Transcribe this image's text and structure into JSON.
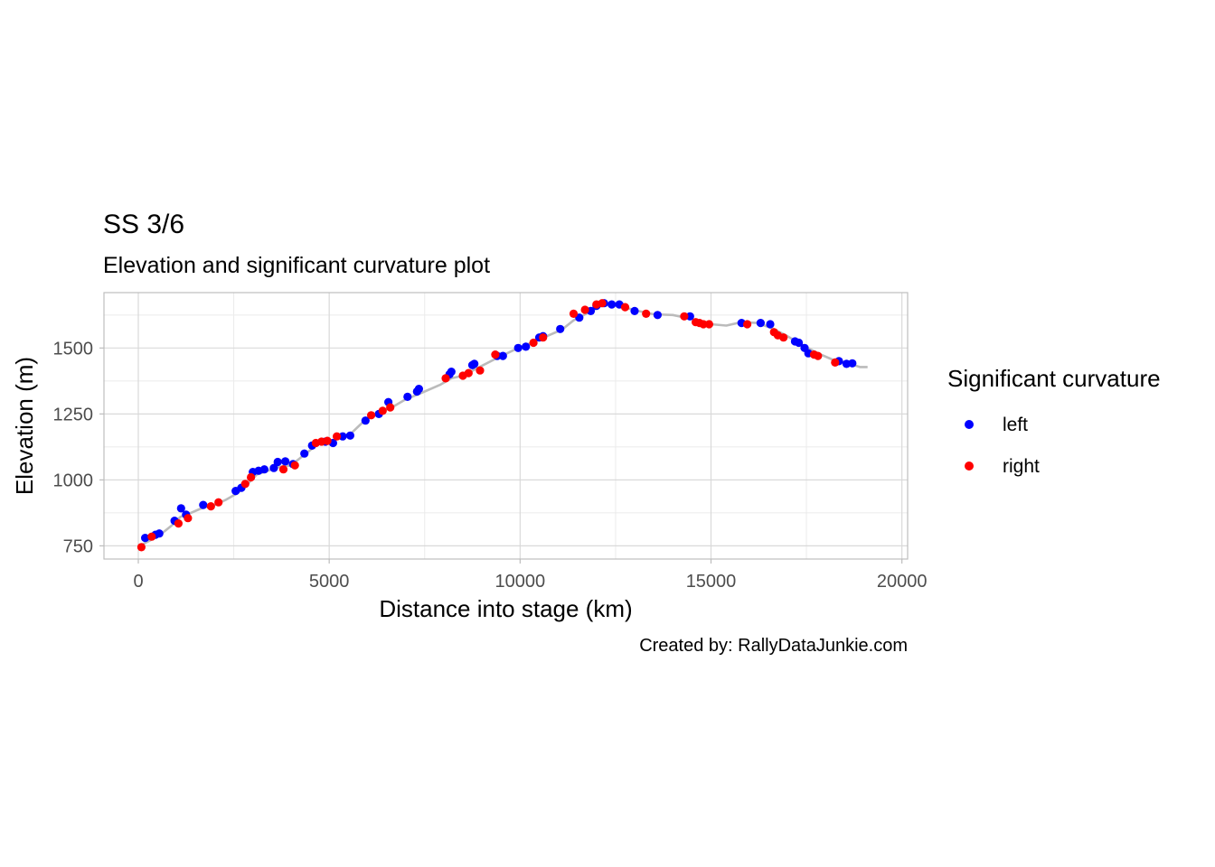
{
  "chart_data": {
    "type": "scatter",
    "title": "SS 3/6",
    "subtitle": "Elevation and significant curvature plot",
    "xlabel": "Distance into stage (km)",
    "ylabel": "Elevation (m)",
    "caption": "Created by: RallyDataJunkie.com",
    "xlim": [
      -900,
      20150
    ],
    "ylim": [
      700,
      1710
    ],
    "x_ticks": [
      0,
      5000,
      10000,
      15000,
      20000
    ],
    "x_tick_labels": [
      "0",
      "5000",
      "10000",
      "15000",
      "20000"
    ],
    "y_ticks": [
      750,
      1000,
      1250,
      1500
    ],
    "y_tick_labels": [
      "750",
      "1000",
      "1250",
      "1500"
    ],
    "grid": true,
    "legend": {
      "title": "Significant curvature",
      "position": "right"
    },
    "line": {
      "color": "#bbbbbb",
      "points": [
        [
          0,
          748
        ],
        [
          300,
          770
        ],
        [
          600,
          795
        ],
        [
          900,
          830
        ],
        [
          1100,
          860
        ],
        [
          1300,
          870
        ],
        [
          1700,
          895
        ],
        [
          2000,
          905
        ],
        [
          2300,
          925
        ],
        [
          2600,
          950
        ],
        [
          2800,
          975
        ],
        [
          3100,
          1020
        ],
        [
          3400,
          1035
        ],
        [
          3700,
          1050
        ],
        [
          4000,
          1055
        ],
        [
          4300,
          1090
        ],
        [
          4700,
          1135
        ],
        [
          5200,
          1155
        ],
        [
          5600,
          1180
        ],
        [
          6000,
          1235
        ],
        [
          6300,
          1255
        ],
        [
          6700,
          1280
        ],
        [
          7000,
          1305
        ],
        [
          7500,
          1335
        ],
        [
          7900,
          1360
        ],
        [
          8200,
          1385
        ],
        [
          8500,
          1395
        ],
        [
          8900,
          1425
        ],
        [
          9300,
          1455
        ],
        [
          9800,
          1490
        ],
        [
          10300,
          1520
        ],
        [
          10700,
          1545
        ],
        [
          11100,
          1570
        ],
        [
          11400,
          1605
        ],
        [
          11800,
          1635
        ],
        [
          12100,
          1658
        ],
        [
          12400,
          1665
        ],
        [
          12700,
          1655
        ],
        [
          13100,
          1640
        ],
        [
          13500,
          1628
        ],
        [
          14000,
          1625
        ],
        [
          14500,
          1610
        ],
        [
          15000,
          1590
        ],
        [
          15400,
          1585
        ],
        [
          15800,
          1598
        ],
        [
          16200,
          1595
        ],
        [
          16600,
          1575
        ],
        [
          17000,
          1545
        ],
        [
          17400,
          1510
        ],
        [
          17800,
          1480
        ],
        [
          18200,
          1455
        ],
        [
          18600,
          1442
        ],
        [
          18900,
          1428
        ],
        [
          19100,
          1428
        ]
      ]
    },
    "series": [
      {
        "name": "left",
        "color": "#0000ff",
        "points": [
          [
            180,
            780
          ],
          [
            450,
            792
          ],
          [
            550,
            797
          ],
          [
            950,
            845
          ],
          [
            1120,
            892
          ],
          [
            1250,
            868
          ],
          [
            1700,
            905
          ],
          [
            2550,
            958
          ],
          [
            2700,
            970
          ],
          [
            3000,
            1030
          ],
          [
            3150,
            1035
          ],
          [
            3300,
            1040
          ],
          [
            3550,
            1045
          ],
          [
            3650,
            1068
          ],
          [
            3850,
            1070
          ],
          [
            4050,
            1060
          ],
          [
            4350,
            1100
          ],
          [
            4550,
            1130
          ],
          [
            4900,
            1145
          ],
          [
            5100,
            1140
          ],
          [
            5350,
            1165
          ],
          [
            5550,
            1168
          ],
          [
            5950,
            1225
          ],
          [
            6300,
            1250
          ],
          [
            6550,
            1295
          ],
          [
            7050,
            1315
          ],
          [
            7300,
            1335
          ],
          [
            7350,
            1345
          ],
          [
            8150,
            1400
          ],
          [
            8200,
            1410
          ],
          [
            8750,
            1435
          ],
          [
            8800,
            1440
          ],
          [
            9400,
            1470
          ],
          [
            9550,
            1470
          ],
          [
            9950,
            1500
          ],
          [
            10150,
            1505
          ],
          [
            10500,
            1540
          ],
          [
            10600,
            1545
          ],
          [
            11050,
            1572
          ],
          [
            11550,
            1615
          ],
          [
            11850,
            1640
          ],
          [
            12000,
            1660
          ],
          [
            12200,
            1670
          ],
          [
            12400,
            1665
          ],
          [
            12600,
            1665
          ],
          [
            13000,
            1640
          ],
          [
            13600,
            1625
          ],
          [
            14450,
            1620
          ],
          [
            15800,
            1595
          ],
          [
            16300,
            1595
          ],
          [
            16550,
            1590
          ],
          [
            17200,
            1525
          ],
          [
            17300,
            1520
          ],
          [
            17450,
            1500
          ],
          [
            17550,
            1480
          ],
          [
            18350,
            1450
          ],
          [
            18550,
            1440
          ],
          [
            18700,
            1442
          ]
        ]
      },
      {
        "name": "right",
        "color": "#ff0000",
        "points": [
          [
            80,
            745
          ],
          [
            350,
            785
          ],
          [
            1050,
            835
          ],
          [
            1300,
            855
          ],
          [
            1900,
            900
          ],
          [
            2100,
            915
          ],
          [
            2800,
            985
          ],
          [
            2950,
            1010
          ],
          [
            3800,
            1040
          ],
          [
            4100,
            1055
          ],
          [
            4650,
            1140
          ],
          [
            4800,
            1145
          ],
          [
            4950,
            1148
          ],
          [
            5200,
            1165
          ],
          [
            6100,
            1245
          ],
          [
            6400,
            1262
          ],
          [
            6600,
            1275
          ],
          [
            8050,
            1385
          ],
          [
            8500,
            1395
          ],
          [
            8650,
            1405
          ],
          [
            8950,
            1415
          ],
          [
            9350,
            1475
          ],
          [
            10350,
            1520
          ],
          [
            10600,
            1540
          ],
          [
            11400,
            1630
          ],
          [
            11700,
            1645
          ],
          [
            12000,
            1665
          ],
          [
            12150,
            1670
          ],
          [
            12750,
            1655
          ],
          [
            13300,
            1630
          ],
          [
            14300,
            1620
          ],
          [
            14600,
            1598
          ],
          [
            14700,
            1595
          ],
          [
            14800,
            1590
          ],
          [
            14950,
            1590
          ],
          [
            15950,
            1590
          ],
          [
            16650,
            1560
          ],
          [
            16750,
            1548
          ],
          [
            16900,
            1540
          ],
          [
            17700,
            1475
          ],
          [
            17800,
            1470
          ],
          [
            18250,
            1445
          ]
        ]
      }
    ]
  }
}
